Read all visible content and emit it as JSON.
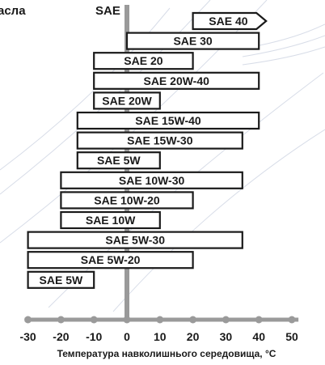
{
  "chart_data": {
    "type": "bar",
    "orientation": "horizontal-range",
    "title": "асла",
    "axis_top_label": "SAE",
    "xlabel": "Температура навколишнього середовища, °С",
    "xlim": [
      -31,
      52
    ],
    "xticks": [
      -30,
      -20,
      -10,
      0,
      10,
      20,
      30,
      40,
      50
    ],
    "grid": false,
    "bars": [
      {
        "label": "SAE 40",
        "start": 20,
        "end": 40,
        "arrow_right": true
      },
      {
        "label": "SAE 30",
        "start": 0,
        "end": 40
      },
      {
        "label": "SAE 20",
        "start": -10,
        "end": 20
      },
      {
        "label": "SAE 20W-40",
        "start": -10,
        "end": 40
      },
      {
        "label": "SAE 20W",
        "start": -10,
        "end": 10
      },
      {
        "label": "SAE 15W-40",
        "start": -15,
        "end": 40
      },
      {
        "label": "SAE 15W-30",
        "start": -15,
        "end": 35
      },
      {
        "label": "SAE 5W",
        "start": -15,
        "end": 10
      },
      {
        "label": "SAE 10W-30",
        "start": -20,
        "end": 35
      },
      {
        "label": "SAE 10W-20",
        "start": -20,
        "end": 20
      },
      {
        "label": "SAE 10W",
        "start": -20,
        "end": 10
      },
      {
        "label": "SAE 5W-30",
        "start": -30,
        "end": 35
      },
      {
        "label": "SAE 5W-20",
        "start": -30,
        "end": 20
      },
      {
        "label": "SAE 5W",
        "start": -30,
        "end": -10
      }
    ]
  }
}
